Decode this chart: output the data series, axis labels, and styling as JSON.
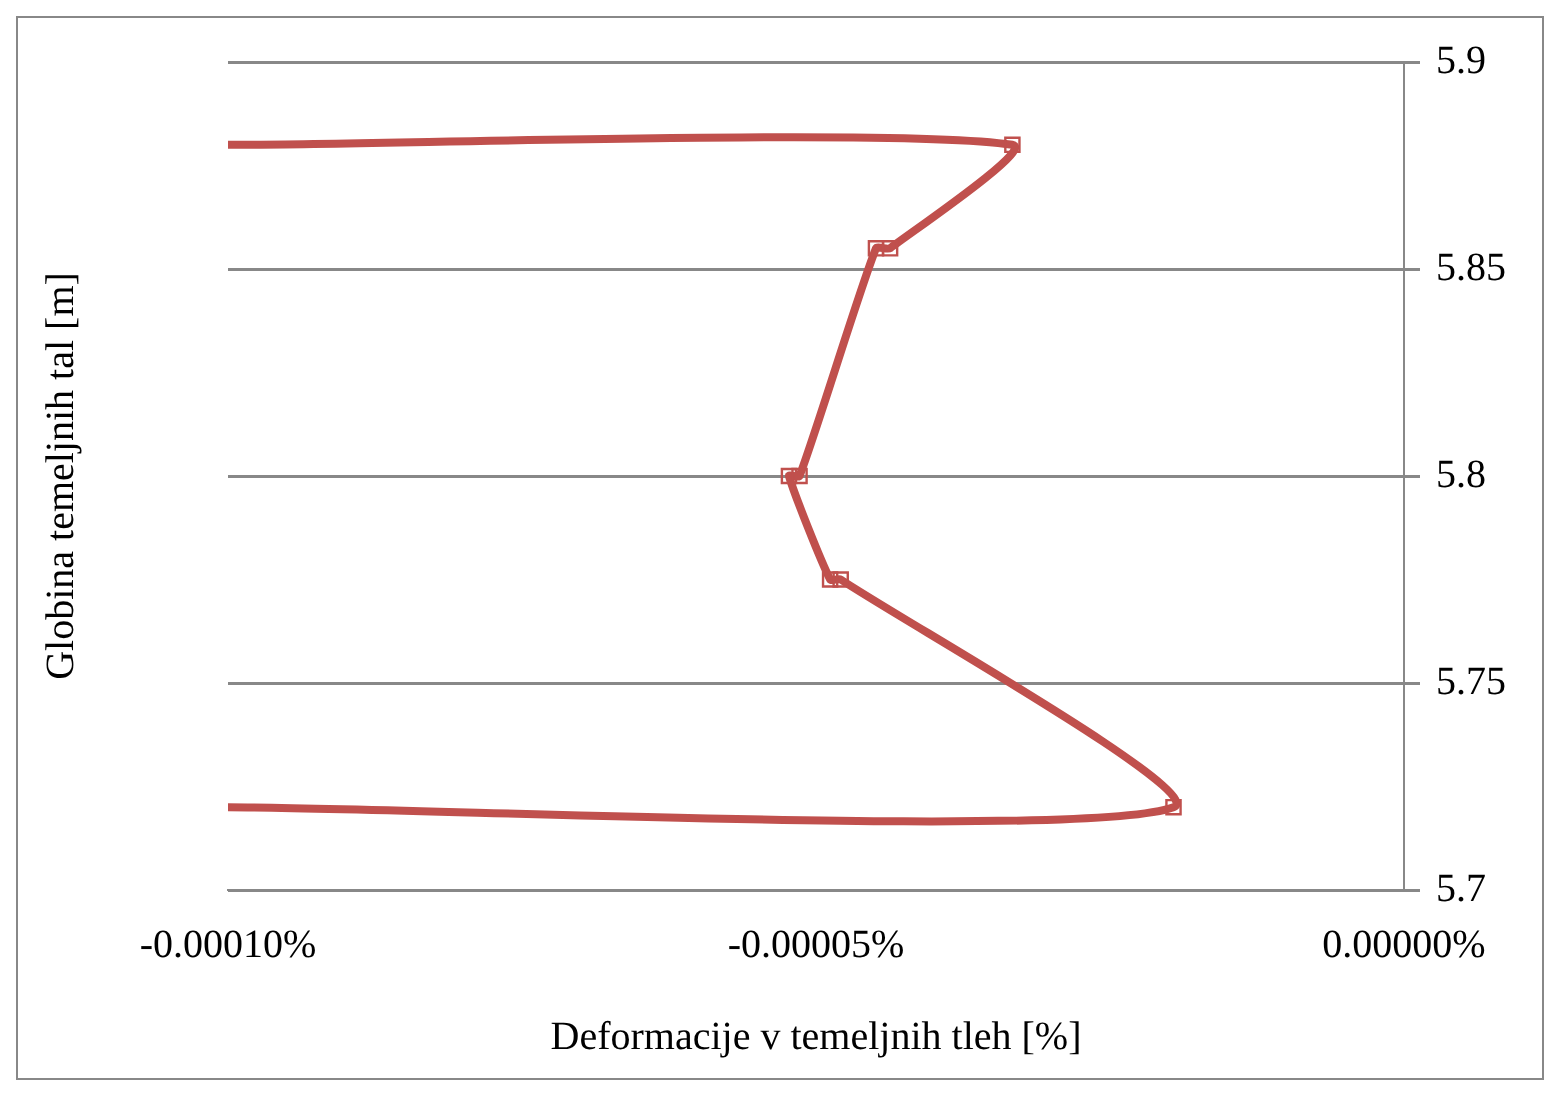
{
  "chart_data": {
    "type": "line",
    "xlabel": "Deformacije v temeljnih tleh [%]",
    "ylabel": "Globina temeljnih tal [m]",
    "x": [
      -0.0001,
      -3.33e-05,
      -4.37e-05,
      -4.49e-05,
      -5.14e-05,
      -5.23e-05,
      -4.88e-05,
      -4.79e-05,
      -1.96e-05,
      -0.0001
    ],
    "series": [
      {
        "color": "#c0504d",
        "values": [
          5.88,
          5.88,
          5.855,
          5.855,
          5.8,
          5.8,
          5.775,
          5.775,
          5.72,
          5.72
        ]
      }
    ],
    "xlim": [
      -0.0001,
      0
    ],
    "xticks": [
      {
        "value": -0.0001,
        "label": "-0.00010%"
      },
      {
        "value": -5e-05,
        "label": "-0.00005%"
      },
      {
        "value": 0,
        "label": "0.00000%"
      }
    ],
    "ylim": [
      5.7,
      5.9
    ],
    "yticks": [
      5.7,
      5.75,
      5.8,
      5.85,
      5.9
    ],
    "grid": "y",
    "marker": "square",
    "line_style": "solid",
    "legend": false
  }
}
